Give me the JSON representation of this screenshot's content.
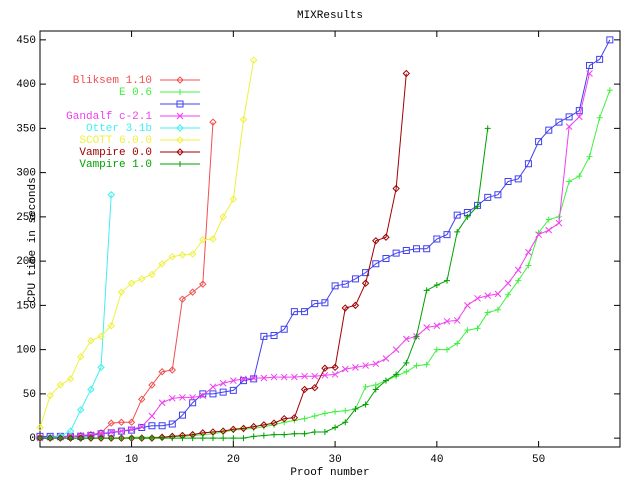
{
  "chart_data": {
    "type": "line",
    "title": "MIXResults",
    "x_label": "Proof number",
    "y_label": "CPU time in seconds",
    "xlim": [
      1,
      58
    ],
    "xticks": [
      10,
      20,
      30,
      40,
      50
    ],
    "ylim": [
      -10,
      460
    ],
    "yticks": [
      0,
      50,
      100,
      150,
      200,
      250,
      300,
      350,
      400,
      450
    ],
    "legend": "top-left",
    "series": [
      {
        "name": "Bliksem 1.10",
        "color": "#f05050",
        "marker": "diamond",
        "x": [
          1,
          2,
          3,
          4,
          5,
          6,
          7,
          8,
          9,
          10,
          11,
          12,
          13,
          14,
          15,
          16,
          17,
          18
        ],
        "values": [
          1,
          1,
          2,
          2,
          3,
          4,
          6,
          17,
          18,
          18,
          44,
          60,
          75,
          77,
          157,
          165,
          174,
          357
        ]
      },
      {
        "name": "E 0.6",
        "color": "#40f040",
        "marker": "plus",
        "x": [
          1,
          2,
          3,
          4,
          5,
          6,
          7,
          8,
          9,
          10,
          11,
          12,
          13,
          14,
          15,
          16,
          17,
          18,
          19,
          20,
          21,
          22,
          23,
          24,
          25,
          26,
          27,
          28,
          29,
          30,
          31,
          32,
          33,
          34,
          35,
          36,
          37,
          38,
          39,
          40,
          41,
          42,
          43,
          44,
          45,
          46,
          47,
          48,
          49,
          50,
          51,
          52,
          53,
          54,
          55,
          56,
          57
        ],
        "values": [
          0,
          0,
          0,
          0,
          0,
          0,
          0,
          0,
          0,
          1,
          1,
          1,
          1,
          2,
          2,
          3,
          4,
          5,
          7,
          9,
          10,
          11,
          13,
          15,
          18,
          20,
          22,
          25,
          28,
          30,
          31,
          33,
          58,
          60,
          65,
          70,
          75,
          82,
          83,
          100,
          100,
          107,
          122,
          124,
          142,
          145,
          162,
          178,
          195,
          232,
          247,
          250,
          290,
          296,
          318,
          362,
          393
        ]
      },
      {
        "name": null,
        "color": "#4040f0",
        "marker": "square",
        "x": [
          1,
          2,
          3,
          4,
          5,
          6,
          7,
          8,
          9,
          10,
          11,
          12,
          13,
          14,
          15,
          16,
          17,
          18,
          19,
          20,
          21,
          22,
          23,
          24,
          25,
          26,
          27,
          28,
          29,
          30,
          31,
          32,
          33,
          34,
          35,
          36,
          37,
          38,
          39,
          40,
          41,
          42,
          43,
          44,
          45,
          46,
          47,
          48,
          49,
          50,
          51,
          52,
          53,
          54,
          55,
          56,
          57
        ],
        "values": [
          2,
          2,
          2,
          2,
          2,
          3,
          5,
          6,
          8,
          9,
          12,
          14,
          14,
          16,
          26,
          40,
          50,
          50,
          52,
          54,
          65,
          67,
          115,
          116,
          123,
          143,
          143,
          152,
          153,
          172,
          174,
          180,
          187,
          197,
          203,
          209,
          212,
          214,
          214,
          225,
          230,
          252,
          255,
          263,
          272,
          275,
          290,
          293,
          310,
          335,
          348,
          357,
          363,
          370,
          421,
          428,
          450
        ]
      },
      {
        "name": "Gandalf c-2.1",
        "color": "#f040f0",
        "marker": "cross",
        "x": [
          1,
          2,
          3,
          4,
          5,
          6,
          7,
          8,
          9,
          10,
          11,
          12,
          13,
          14,
          15,
          16,
          17,
          18,
          19,
          20,
          21,
          22,
          23,
          24,
          25,
          26,
          27,
          28,
          29,
          30,
          31,
          32,
          33,
          34,
          35,
          36,
          37,
          38,
          39,
          40,
          41,
          42,
          43,
          44,
          45,
          46,
          47,
          48,
          49,
          50,
          51,
          52,
          53,
          54,
          55
        ],
        "values": [
          0,
          1,
          1,
          2,
          3,
          4,
          5,
          7,
          8,
          10,
          13,
          25,
          40,
          45,
          46,
          46,
          48,
          58,
          62,
          65,
          67,
          68,
          68,
          69,
          69,
          69,
          70,
          70,
          71,
          72,
          78,
          80,
          82,
          84,
          90,
          100,
          112,
          115,
          125,
          127,
          132,
          133,
          150,
          158,
          161,
          163,
          175,
          190,
          210,
          230,
          235,
          243,
          352,
          363,
          412
        ]
      },
      {
        "name": "Otter 3.1b",
        "color": "#40f0f0",
        "marker": "diamond",
        "x": [
          1,
          2,
          3,
          4,
          5,
          6,
          7,
          8
        ],
        "values": [
          0,
          1,
          2,
          8,
          32,
          55,
          80,
          275
        ]
      },
      {
        "name": "SCOTT 6.0.0",
        "color": "#f0f040",
        "marker": "diamond",
        "x": [
          1,
          2,
          3,
          4,
          5,
          6,
          7,
          8,
          9,
          10,
          11,
          12,
          13,
          14,
          15,
          16,
          17,
          18,
          19,
          20,
          21,
          22
        ],
        "values": [
          12,
          48,
          60,
          67,
          92,
          110,
          115,
          127,
          165,
          175,
          180,
          185,
          197,
          205,
          207,
          208,
          224,
          225,
          250,
          270,
          360,
          427
        ]
      },
      {
        "name": "Vampire 0.0",
        "color": "#a00000",
        "marker": "diamond",
        "x": [
          1,
          2,
          3,
          4,
          5,
          6,
          7,
          8,
          9,
          10,
          11,
          12,
          13,
          14,
          15,
          16,
          17,
          18,
          19,
          20,
          21,
          22,
          23,
          24,
          25,
          26,
          27,
          28,
          29,
          30,
          31,
          32,
          33,
          34,
          35,
          36,
          37
        ],
        "values": [
          0,
          0,
          0,
          0,
          0,
          0,
          0,
          0,
          0,
          0,
          0,
          0,
          1,
          2,
          3,
          4,
          6,
          7,
          8,
          10,
          11,
          13,
          15,
          17,
          22,
          23,
          55,
          57,
          79,
          80,
          147,
          150,
          175,
          223,
          227,
          282,
          412
        ]
      },
      {
        "name": "Vampire 1.0",
        "color": "#00a000",
        "marker": "plus",
        "x": [
          1,
          2,
          3,
          4,
          5,
          6,
          7,
          8,
          9,
          10,
          11,
          12,
          13,
          14,
          15,
          16,
          17,
          18,
          19,
          20,
          21,
          22,
          23,
          24,
          25,
          26,
          27,
          28,
          29,
          30,
          31,
          32,
          33,
          34,
          35,
          36,
          37,
          38,
          39,
          40,
          41,
          42,
          43,
          44,
          45
        ],
        "values": [
          0,
          0,
          0,
          0,
          0,
          0,
          0,
          0,
          0,
          0,
          0,
          0,
          0,
          0,
          0,
          0,
          0,
          0,
          0,
          0,
          0,
          2,
          3,
          4,
          4,
          5,
          5,
          7,
          7,
          12,
          18,
          33,
          38,
          55,
          65,
          72,
          85,
          115,
          167,
          173,
          178,
          233,
          250,
          262,
          350
        ]
      }
    ]
  }
}
